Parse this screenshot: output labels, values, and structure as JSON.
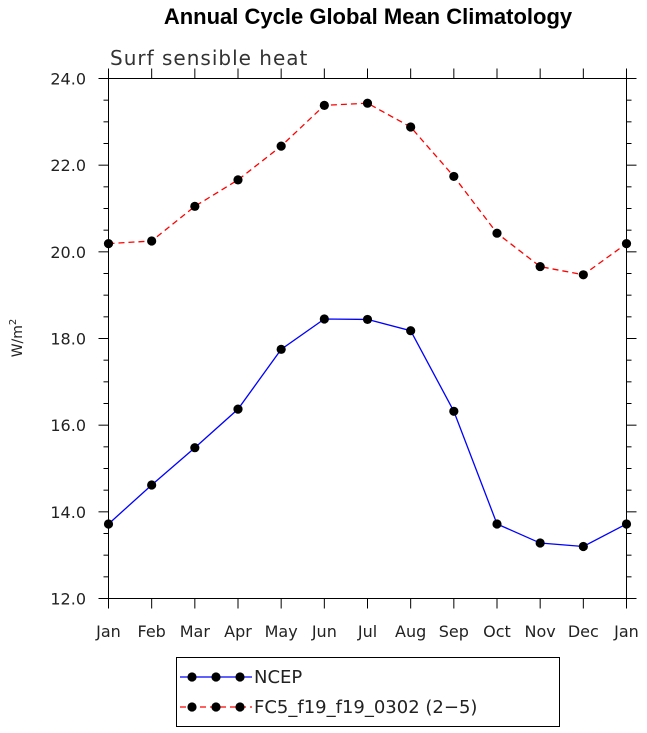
{
  "chart_data": {
    "type": "line",
    "title": "Annual Cycle Global Mean Climatology",
    "subtitle": "Surf sensible heat",
    "ylabel": "W/m",
    "ylabel_sup": "2",
    "xlabel": "",
    "ylim": [
      12.0,
      24.0
    ],
    "yticks": [
      "12.0",
      "14.0",
      "16.0",
      "18.0",
      "20.0",
      "22.0",
      "24.0"
    ],
    "categories": [
      "Jan",
      "Feb",
      "Mar",
      "Apr",
      "May",
      "Jun",
      "Jul",
      "Aug",
      "Sep",
      "Oct",
      "Nov",
      "Dec",
      "Jan"
    ],
    "series": [
      {
        "name": "NCEP",
        "color": "#0000ff",
        "style": "solid",
        "values": [
          13.72,
          14.62,
          15.48,
          16.37,
          17.75,
          18.45,
          18.44,
          18.18,
          16.32,
          13.72,
          13.28,
          13.2,
          13.72
        ]
      },
      {
        "name": "FC5_f19_f19_0302 (2−5)",
        "color": "#ff0000",
        "style": "dashed",
        "values": [
          20.19,
          20.25,
          21.05,
          21.66,
          22.44,
          23.38,
          23.43,
          22.88,
          21.74,
          20.43,
          19.66,
          19.47,
          20.19
        ]
      }
    ],
    "legend_position": "bottom-left"
  }
}
